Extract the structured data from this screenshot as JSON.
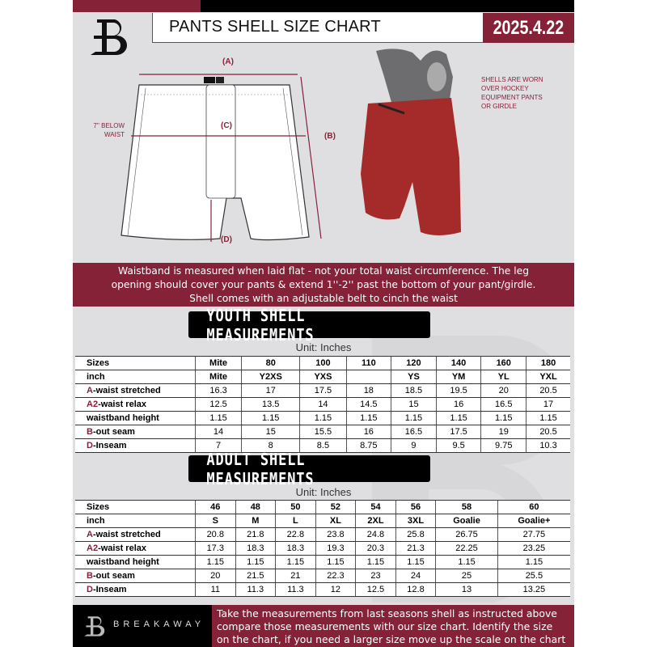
{
  "header": {
    "title": "PANTS SHELL SIZE CHART",
    "date": "2025.4.22"
  },
  "colors": {
    "maroon": "#862238",
    "black": "#000000",
    "background": "#dfdfe2"
  },
  "diagram": {
    "label_a": "(A)",
    "label_b": "(B)",
    "label_c": "(C)",
    "label_d": "(D)",
    "below_waist_line1": "7'' BELOW",
    "below_waist_line2": "WAIST",
    "note_lines": [
      "SHELLS ARE WORN",
      "OVER HOCKEY",
      "EQUIPMENT PANTS",
      "OR GIRDLE"
    ]
  },
  "info_text": [
    "Waistband is measured when laid flat - not your total waist circumference. The leg",
    "opening should cover your pants & extend 1''-2'' past the bottom of your pant/girdle.",
    "Shell comes with an adjustable belt to cinch the waist"
  ],
  "youth": {
    "title": "YOUTH SHELL MEASUREMENTS",
    "unit": "Unit: Inches",
    "rows": [
      {
        "prefix": "",
        "label": "Sizes",
        "values": [
          "Mite",
          "80",
          "100",
          "110",
          "120",
          "140",
          "160",
          "180"
        ],
        "header": true
      },
      {
        "prefix": "",
        "label": "inch",
        "values": [
          "Mite",
          "Y2XS",
          "YXS",
          "",
          "YS",
          "YM",
          "YL",
          "YXL"
        ],
        "header": true
      },
      {
        "prefix": "A",
        "label": "-waist stretched",
        "values": [
          "16.3",
          "17",
          "17.5",
          "18",
          "18.5",
          "19.5",
          "20",
          "20.5"
        ]
      },
      {
        "prefix": "A2",
        "label": "-waist relax",
        "values": [
          "12.5",
          "13.5",
          "14",
          "14.5",
          "15",
          "16",
          "16.5",
          "17"
        ]
      },
      {
        "prefix": "",
        "label": "waistband height",
        "values": [
          "1.15",
          "1.15",
          "1.15",
          "1.15",
          "1.15",
          "1.15",
          "1.15",
          "1.15"
        ]
      },
      {
        "prefix": "B",
        "label": "-out seam",
        "values": [
          "14",
          "15",
          "15.5",
          "16",
          "16.5",
          "17.5",
          "19",
          "20.5"
        ]
      },
      {
        "prefix": "D",
        "label": "-Inseam",
        "values": [
          "7",
          "8",
          "8.5",
          "8.75",
          "9",
          "9.5",
          "9.75",
          "10.3"
        ]
      }
    ]
  },
  "adult": {
    "title": "ADULT SHELL MEASUREMENTS",
    "unit": "Unit: Inches",
    "rows": [
      {
        "prefix": "",
        "label": "Sizes",
        "values": [
          "46",
          "48",
          "50",
          "52",
          "54",
          "56",
          "58",
          "60"
        ],
        "header": true
      },
      {
        "prefix": "",
        "label": "inch",
        "values": [
          "S",
          "M",
          "L",
          "XL",
          "2XL",
          "3XL",
          "Goalie",
          "Goalie+"
        ],
        "header": true
      },
      {
        "prefix": "A",
        "label": "-waist stretched",
        "values": [
          "20.8",
          "21.8",
          "22.8",
          "23.8",
          "24.8",
          "25.8",
          "26.75",
          "27.75"
        ]
      },
      {
        "prefix": "A2",
        "label": "-waist relax",
        "values": [
          "17.3",
          "18.3",
          "18.3",
          "19.3",
          "20.3",
          "21.3",
          "22.25",
          "23.25"
        ]
      },
      {
        "prefix": "",
        "label": "waistband height",
        "values": [
          "1.15",
          "1.15",
          "1.15",
          "1.15",
          "1.15",
          "1.15",
          "1.15",
          "1.15"
        ]
      },
      {
        "prefix": "B",
        "label": "-out seam",
        "values": [
          "20",
          "21.5",
          "21",
          "22.3",
          "23",
          "24",
          "25",
          "25.5"
        ]
      },
      {
        "prefix": "D",
        "label": "-Inseam",
        "values": [
          "11",
          "11.3",
          "11.3",
          "12",
          "12.5",
          "12.8",
          "13",
          "13.25"
        ]
      }
    ]
  },
  "footer": {
    "brand": "BREAKAWAY",
    "text": [
      "Take the measurements from last seasons shell as instructed above",
      "compare those measurements  with our size chart. Identify the size",
      "on the chart, if you need a larger size move up the scale on the chart"
    ]
  }
}
